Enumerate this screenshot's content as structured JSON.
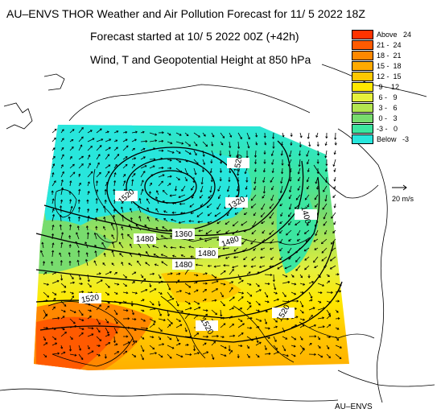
{
  "header": {
    "title": "AU–ENVS THOR Weather and Air Pollution Forecast for 11/ 5 2022  18Z",
    "started": "Forecast started at 10/ 5 2022  00Z (+42h)",
    "variables": "Wind, T and Geopotential Height at 850 hPa"
  },
  "legend": {
    "entries": [
      {
        "label": "Above   24",
        "color": "#ff3300"
      },
      {
        "label": "21 -  24",
        "color": "#ff5a00"
      },
      {
        "label": "18 -  21",
        "color": "#ff8800"
      },
      {
        "label": "15 -  18",
        "color": "#ffaa00"
      },
      {
        "label": "12 -  15",
        "color": "#ffc800"
      },
      {
        "label": " 9 -  12",
        "color": "#ffe800"
      },
      {
        "label": " 6 -   9",
        "color": "#e6f03c"
      },
      {
        "label": " 3 -   6",
        "color": "#b4e650"
      },
      {
        "label": " 0 -   3",
        "color": "#78dc6e"
      },
      {
        "label": "-3 -   0",
        "color": "#3ce6a0"
      },
      {
        "label": "Below   -3",
        "color": "#28e6dc"
      }
    ]
  },
  "wind_scale": {
    "label": "20 m/s"
  },
  "contour_labels": [
    "1520",
    "1520",
    "1480",
    "1360",
    "1480",
    "1480",
    "1480",
    "1520",
    "1520",
    "1520",
    "1400",
    "1320"
  ],
  "footer": {
    "credit": "AU–ENVS"
  }
}
